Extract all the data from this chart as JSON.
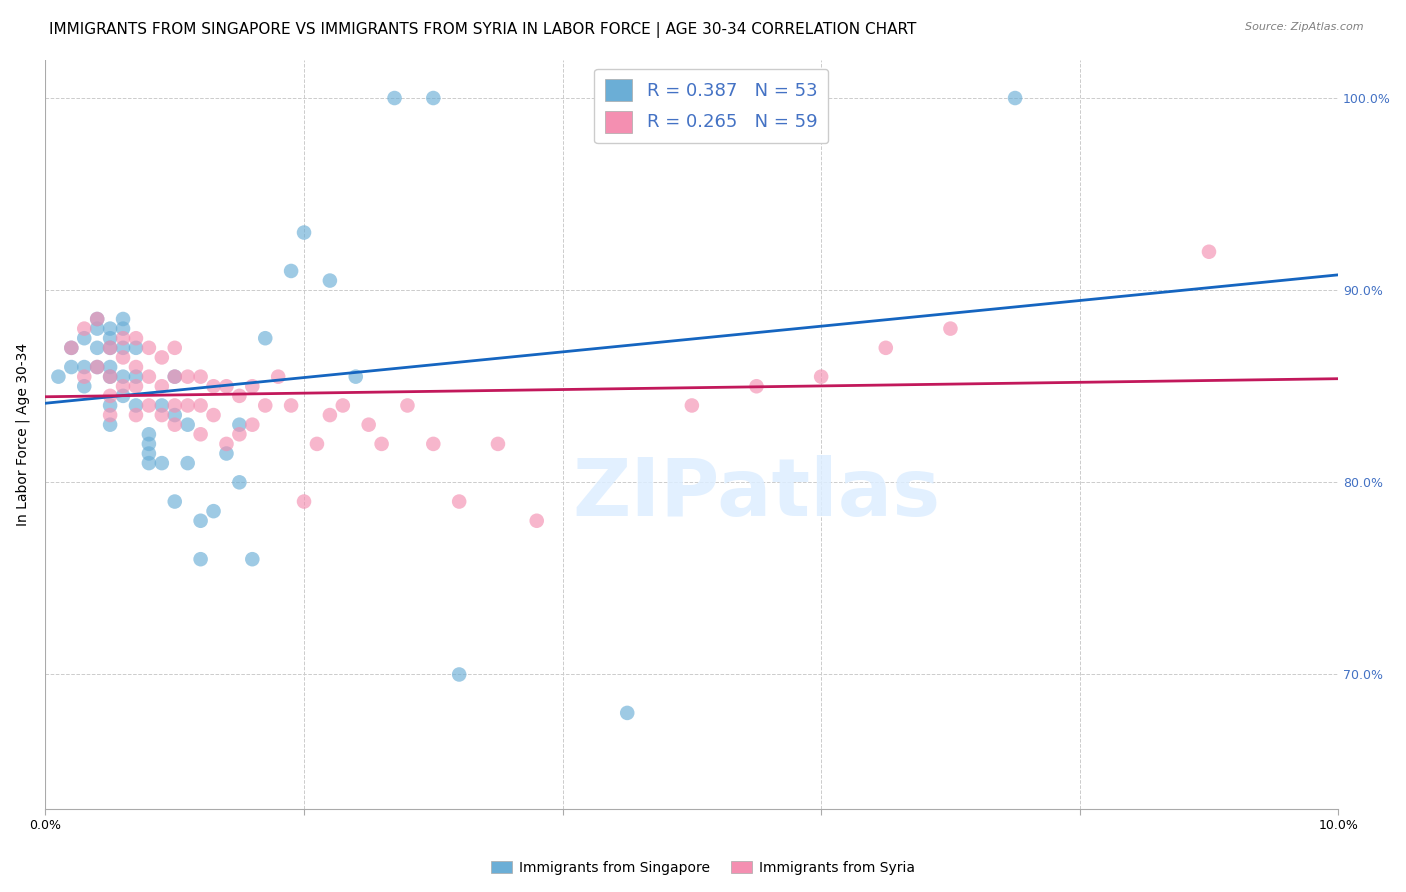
{
  "title": "IMMIGRANTS FROM SINGAPORE VS IMMIGRANTS FROM SYRIA IN LABOR FORCE | AGE 30-34 CORRELATION CHART",
  "source": "Source: ZipAtlas.com",
  "ylabel": "In Labor Force | Age 30-34",
  "xlim": [
    0.0,
    0.1
  ],
  "ylim": [
    0.63,
    1.02
  ],
  "y_ticks_right": [
    0.7,
    0.8,
    0.9,
    1.0
  ],
  "y_tick_labels_right": [
    "70.0%",
    "80.0%",
    "90.0%",
    "100.0%"
  ],
  "singapore_color": "#6baed6",
  "singapore_line_color": "#1565c0",
  "syria_color": "#f48fb1",
  "syria_line_color": "#c2185b",
  "singapore_R": 0.387,
  "singapore_N": 53,
  "syria_R": 0.265,
  "syria_N": 59,
  "title_fontsize": 11,
  "axis_label_fontsize": 10,
  "tick_fontsize": 9,
  "legend_fontsize": 13,
  "watermark": "ZIPatlas",
  "singapore_x": [
    0.001,
    0.002,
    0.002,
    0.003,
    0.003,
    0.003,
    0.004,
    0.004,
    0.004,
    0.004,
    0.005,
    0.005,
    0.005,
    0.005,
    0.005,
    0.005,
    0.005,
    0.006,
    0.006,
    0.006,
    0.006,
    0.006,
    0.007,
    0.007,
    0.007,
    0.008,
    0.008,
    0.008,
    0.008,
    0.009,
    0.009,
    0.01,
    0.01,
    0.01,
    0.011,
    0.011,
    0.012,
    0.012,
    0.013,
    0.014,
    0.015,
    0.015,
    0.016,
    0.017,
    0.019,
    0.02,
    0.022,
    0.024,
    0.027,
    0.03,
    0.032,
    0.045,
    0.075
  ],
  "singapore_y": [
    0.855,
    0.87,
    0.86,
    0.875,
    0.86,
    0.85,
    0.885,
    0.88,
    0.87,
    0.86,
    0.88,
    0.875,
    0.87,
    0.86,
    0.855,
    0.84,
    0.83,
    0.885,
    0.88,
    0.87,
    0.855,
    0.845,
    0.87,
    0.855,
    0.84,
    0.825,
    0.82,
    0.815,
    0.81,
    0.84,
    0.81,
    0.855,
    0.835,
    0.79,
    0.83,
    0.81,
    0.78,
    0.76,
    0.785,
    0.815,
    0.83,
    0.8,
    0.76,
    0.875,
    0.91,
    0.93,
    0.905,
    0.855,
    1.0,
    1.0,
    0.7,
    0.68,
    1.0
  ],
  "syria_x": [
    0.002,
    0.003,
    0.003,
    0.004,
    0.004,
    0.005,
    0.005,
    0.005,
    0.005,
    0.006,
    0.006,
    0.006,
    0.007,
    0.007,
    0.007,
    0.007,
    0.008,
    0.008,
    0.008,
    0.009,
    0.009,
    0.009,
    0.01,
    0.01,
    0.01,
    0.01,
    0.011,
    0.011,
    0.012,
    0.012,
    0.012,
    0.013,
    0.013,
    0.014,
    0.014,
    0.015,
    0.015,
    0.016,
    0.016,
    0.017,
    0.018,
    0.019,
    0.02,
    0.021,
    0.022,
    0.023,
    0.025,
    0.026,
    0.028,
    0.03,
    0.032,
    0.035,
    0.038,
    0.05,
    0.055,
    0.06,
    0.065,
    0.07,
    0.09
  ],
  "syria_y": [
    0.87,
    0.88,
    0.855,
    0.885,
    0.86,
    0.87,
    0.855,
    0.845,
    0.835,
    0.875,
    0.865,
    0.85,
    0.875,
    0.86,
    0.85,
    0.835,
    0.87,
    0.855,
    0.84,
    0.865,
    0.85,
    0.835,
    0.87,
    0.855,
    0.84,
    0.83,
    0.855,
    0.84,
    0.855,
    0.84,
    0.825,
    0.85,
    0.835,
    0.85,
    0.82,
    0.845,
    0.825,
    0.85,
    0.83,
    0.84,
    0.855,
    0.84,
    0.79,
    0.82,
    0.835,
    0.84,
    0.83,
    0.82,
    0.84,
    0.82,
    0.79,
    0.82,
    0.78,
    0.84,
    0.85,
    0.855,
    0.87,
    0.88,
    0.92
  ]
}
